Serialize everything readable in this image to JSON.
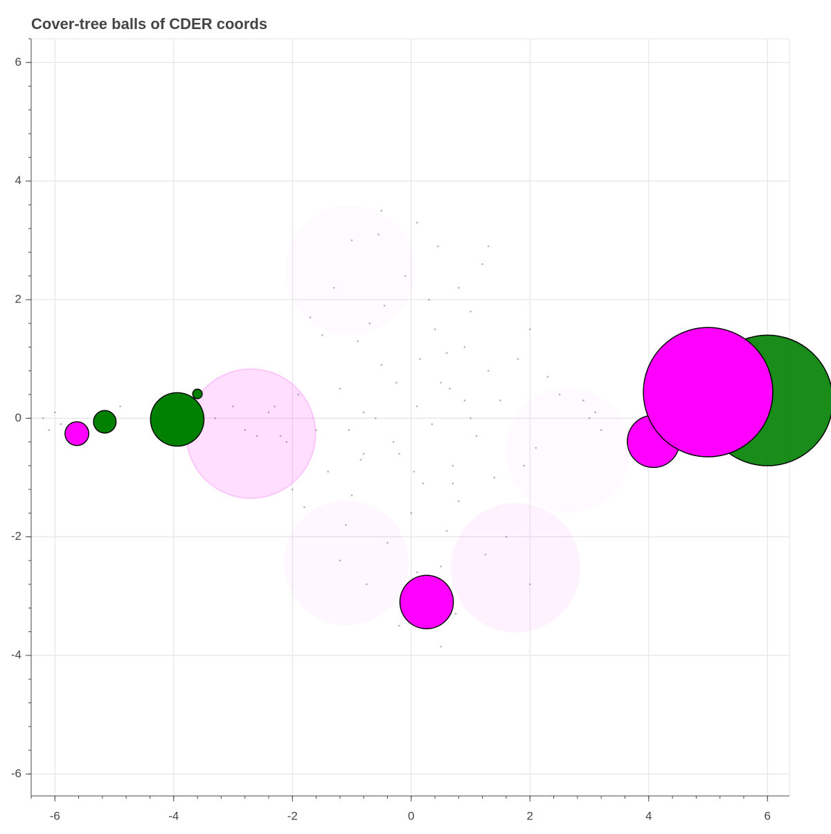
{
  "chart_data": {
    "type": "balls",
    "title": "Cover-tree balls of CDER coords",
    "xlim": [
      -6.4,
      6.37
    ],
    "ylim": [
      -6.37,
      6.4
    ],
    "xticks": [
      -6,
      -4,
      -2,
      0,
      2,
      4,
      6
    ],
    "yticks": [
      -6,
      -4,
      -2,
      0,
      2,
      4,
      6
    ],
    "xminorticks": [
      -6.4,
      -6,
      -5.6,
      -5.2,
      -4.8,
      -4.4,
      -4,
      -3.6,
      -3.2,
      -2.8,
      -2.4,
      -2,
      -1.6,
      -1.2,
      -0.8,
      -0.4,
      0,
      0.4,
      0.8,
      1.2,
      1.6,
      2,
      2.4,
      2.8,
      3.2,
      3.6,
      4,
      4.4,
      4.8,
      5.2,
      5.6,
      6
    ],
    "yminorticks": [
      -6,
      -5.6,
      -5.2,
      -4.8,
      -4.4,
      -4,
      -3.6,
      -3.2,
      -2.8,
      -2.4,
      -2,
      -1.6,
      -1.2,
      -0.8,
      -0.4,
      0,
      0.4,
      0.8,
      1.2,
      1.6,
      2,
      2.4,
      2.8,
      3.2,
      3.6,
      4,
      4.4,
      4.8,
      5.2,
      5.6,
      6,
      6.4
    ],
    "grid": true,
    "balls": [
      {
        "x": -1.03,
        "y": 2.5,
        "r": 1.09,
        "color": "#ff00ff",
        "alpha": 0.02,
        "outline": false
      },
      {
        "x": -1.09,
        "y": -2.44,
        "r": 1.05,
        "color": "#ff00ff",
        "alpha": 0.03,
        "outline": false
      },
      {
        "x": 2.64,
        "y": -0.54,
        "r": 1.05,
        "color": "#ff00ff",
        "alpha": 0.02,
        "outline": false
      },
      {
        "x": 1.76,
        "y": -2.52,
        "r": 1.09,
        "color": "#ff00ff",
        "alpha": 0.05,
        "outline": false
      },
      {
        "x": -2.7,
        "y": -0.26,
        "r": 1.09,
        "color": "#ff00ff",
        "alpha": 0.13,
        "outline": false
      }
    ],
    "solid_balls": [
      {
        "x": -5.63,
        "y": -0.26,
        "r": 0.2,
        "color": "#ff00ff",
        "alpha": 1
      },
      {
        "x": -5.16,
        "y": -0.06,
        "r": 0.19,
        "color": "#008000",
        "alpha": 1
      },
      {
        "x": -3.94,
        "y": -0.02,
        "r": 0.45,
        "color": "#008000",
        "alpha": 1
      },
      {
        "x": -3.6,
        "y": 0.41,
        "r": 0.08,
        "color": "#008000",
        "alpha": 1
      },
      {
        "x": 4.08,
        "y": -0.39,
        "r": 0.44,
        "color": "#ff00ff",
        "alpha": 1
      },
      {
        "x": 6.0,
        "y": 0.3,
        "r": 1.1,
        "color": "#008000",
        "alpha": 0.9
      },
      {
        "x": 5.0,
        "y": 0.44,
        "r": 1.09,
        "color": "#ff00ff",
        "alpha": 1
      },
      {
        "x": 0.26,
        "y": -3.1,
        "r": 0.45,
        "color": "#ff00ff",
        "alpha": 1
      }
    ],
    "points": {
      "color": "#555555",
      "x": [
        0.1,
        -0.3,
        0.5,
        -0.8,
        1.1,
        -1.2,
        0.7,
        -0.5,
        0.2,
        1.5,
        -1.6,
        0.9,
        -0.2,
        0.4,
        -1.0,
        1.3,
        -0.7,
        0.0,
        0.6,
        -1.4,
        1.8,
        -1.9,
        2.1,
        -2.0,
        0.3,
        -0.4,
        1.0,
        -0.9,
        0.8,
        -0.1,
        1.6,
        -1.3,
        2.3,
        -2.2,
        0.5,
        -0.6,
        1.2,
        -1.1,
        0.15,
        -0.25,
        0.9,
        -0.85,
        1.4,
        -1.5,
        0.35,
        -0.45,
        2.0,
        -1.8,
        0.05,
        0.65,
        -1.05,
        1.9,
        0.45,
        -0.75,
        1.25,
        -2.3,
        2.5,
        -0.55,
        0.75,
        -1.7,
        3.0,
        3.2,
        2.9,
        3.1,
        -6.2,
        -6.0,
        -5.9,
        -6.1,
        -4.9,
        -5.0,
        -4.1,
        -3.8,
        -3.3,
        -3.0,
        -2.6,
        -2.4,
        -2.1,
        -2.8,
        4.3,
        4.7,
        5.2,
        5.5,
        5.8,
        6.1,
        4.9,
        5.4,
        0.1,
        0.5,
        -0.5,
        1.3,
        -1.0,
        0.8,
        0.1,
        -0.2,
        0.6,
        2.0,
        -1.2,
        1.0,
        0.7,
        -0.8
      ],
      "y": [
        0.2,
        -0.4,
        0.6,
        0.1,
        -0.3,
        0.5,
        -0.8,
        0.9,
        -1.1,
        0.3,
        -0.2,
        1.2,
        -0.6,
        1.5,
        -1.3,
        0.8,
        1.6,
        -1.6,
        -1.9,
        -0.9,
        1.0,
        0.4,
        -0.5,
        -1.2,
        2.0,
        -2.1,
        1.8,
        1.3,
        -1.4,
        2.4,
        -2.0,
        2.2,
        0.7,
        -0.3,
        -2.5,
        0.0,
        2.6,
        -1.8,
        1.0,
        0.6,
        0.3,
        -0.7,
        -1.0,
        1.4,
        -0.1,
        1.9,
        1.5,
        -1.5,
        -0.9,
        0.5,
        -0.2,
        -0.8,
        2.9,
        -2.8,
        -2.3,
        0.2,
        0.4,
        3.1,
        -3.3,
        1.7,
        0.0,
        -0.2,
        0.3,
        0.1,
        0.0,
        0.1,
        -0.1,
        -0.2,
        0.2,
        -0.1,
        0.1,
        -0.1,
        0.0,
        0.2,
        -0.3,
        0.1,
        -0.4,
        -0.2,
        -0.5,
        0.2,
        0.0,
        0.5,
        -0.3,
        0.1,
        -0.1,
        0.3,
        3.3,
        -3.85,
        3.5,
        2.9,
        3.0,
        2.2,
        -2.6,
        -3.5,
        1.1,
        -2.8,
        -2.4,
        0.0,
        -1.1,
        -0.6
      ]
    }
  }
}
